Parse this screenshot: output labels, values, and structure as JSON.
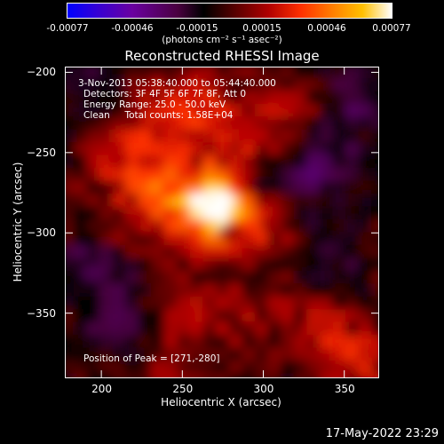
{
  "colorbar": {
    "ticks": [
      "-0.00077",
      "-0.00046",
      "-0.00015",
      "0.00015",
      "0.00046",
      "0.00077"
    ],
    "units": "(photons cm⁻² s⁻¹ asec⁻²)"
  },
  "image_info": {
    "time_range": "3-Nov-2013 05:38:40.000 to 05:44:40.000",
    "detectors": "Detectors: 3F 4F 5F 6F 7F 8F, Att 0",
    "energy_range": "Energy Range: 25.0 - 50.0 keV",
    "clean_counts": "Clean     Total counts: 1.58E+04",
    "peak": "Position of Peak = [271,-280]"
  },
  "footer": {
    "timestamp": "17-May-2022 23:29"
  },
  "chart_data": {
    "type": "heatmap",
    "title": "Reconstructed RHESSI Image",
    "xlabel": "Heliocentric X (arcsec)",
    "ylabel": "Heliocentric Y (arcsec)",
    "xlim": [
      178,
      371
    ],
    "ylim": [
      -390,
      -197
    ],
    "x_ticks": [
      200,
      250,
      300,
      350
    ],
    "y_ticks": [
      -200,
      -250,
      -300,
      -350
    ],
    "colorbar_range": [
      -0.00077,
      0.00077
    ],
    "peak_position": [
      271,
      -280
    ],
    "sources": [
      {
        "x": 271,
        "y": -280,
        "intensity": 0.00077
      },
      {
        "x": 243,
        "y": -273,
        "intensity": 0.0004
      },
      {
        "x": 232,
        "y": -228,
        "intensity": 0.0003
      },
      {
        "x": 262,
        "y": -222,
        "intensity": 0.00028
      },
      {
        "x": 292,
        "y": -240,
        "intensity": 0.00025
      },
      {
        "x": 315,
        "y": -220,
        "intensity": 0.00022
      },
      {
        "x": 210,
        "y": -255,
        "intensity": 0.00024
      },
      {
        "x": 222,
        "y": -290,
        "intensity": 0.0002
      },
      {
        "x": 280,
        "y": -300,
        "intensity": 0.00018
      },
      {
        "x": 305,
        "y": -295,
        "intensity": 0.0002
      },
      {
        "x": 250,
        "y": -350,
        "intensity": 0.00022
      },
      {
        "x": 285,
        "y": -345,
        "intensity": 0.00018
      },
      {
        "x": 330,
        "y": -360,
        "intensity": 0.00024
      },
      {
        "x": 360,
        "y": -380,
        "intensity": 0.0003
      },
      {
        "x": 240,
        "y": -385,
        "intensity": 0.0002
      },
      {
        "x": 195,
        "y": -325,
        "intensity": -0.00028
      },
      {
        "x": 215,
        "y": -360,
        "intensity": -0.00022
      },
      {
        "x": 335,
        "y": -255,
        "intensity": -0.0003
      },
      {
        "x": 355,
        "y": -215,
        "intensity": -0.00022
      },
      {
        "x": 340,
        "y": -310,
        "intensity": -0.0002
      },
      {
        "x": 300,
        "y": -270,
        "intensity": -0.00012
      },
      {
        "x": 190,
        "y": -210,
        "intensity": -0.00015
      }
    ]
  }
}
